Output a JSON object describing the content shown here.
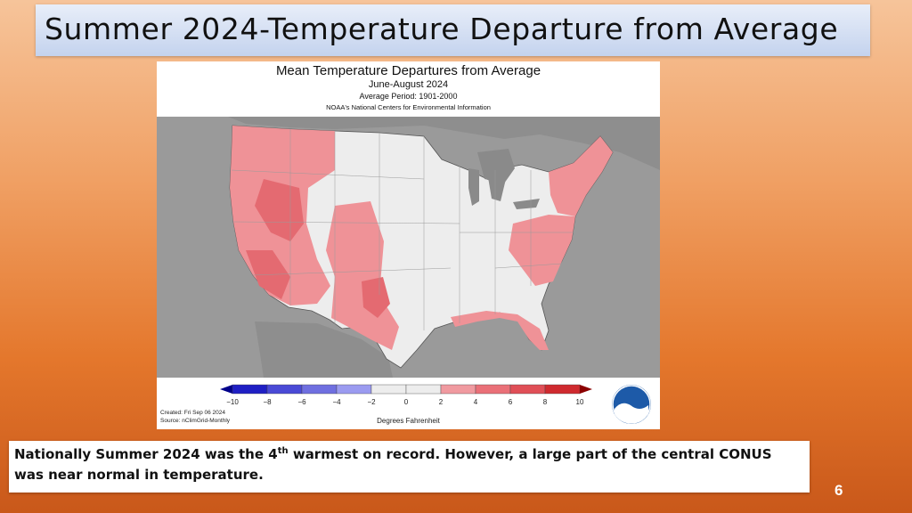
{
  "slide": {
    "title": "Summer 2024-Temperature Departure from Average",
    "number": "6",
    "caption_part1": "Nationally Summer 2024 was the 4",
    "caption_sup": "th",
    "caption_part2": " warmest on record.  However, a large part of the central CONUS was near normal in temperature."
  },
  "map": {
    "title": "Mean Temperature Departures from Average",
    "period": "June-August 2024",
    "average_period": "Average Period: 1901-2000",
    "source_org": "NOAA's National Centers for Environmental Information",
    "created": "Created: Fri Sep 06 2024",
    "source": "Source: nClimGrid-Monthly",
    "units": "Degrees Fahrenheit",
    "logo_text": "NOAA",
    "legend": {
      "ticks": [
        "−10",
        "−8",
        "−6",
        "−4",
        "−2",
        "0",
        "2",
        "4",
        "6",
        "8",
        "10"
      ],
      "colors": [
        "#1f1fc4",
        "#4a4ad6",
        "#6f6fe0",
        "#9b9bf0",
        "#ededed",
        "#ededed",
        "#f09aa0",
        "#ea7078",
        "#e04f57",
        "#cf2a2f"
      ]
    },
    "colors": {
      "warm": "#ef9297",
      "warmer": "#e46a71",
      "normal": "#ededed",
      "land_outside": "#8e8e8e",
      "water": "#9a9a9a"
    }
  }
}
